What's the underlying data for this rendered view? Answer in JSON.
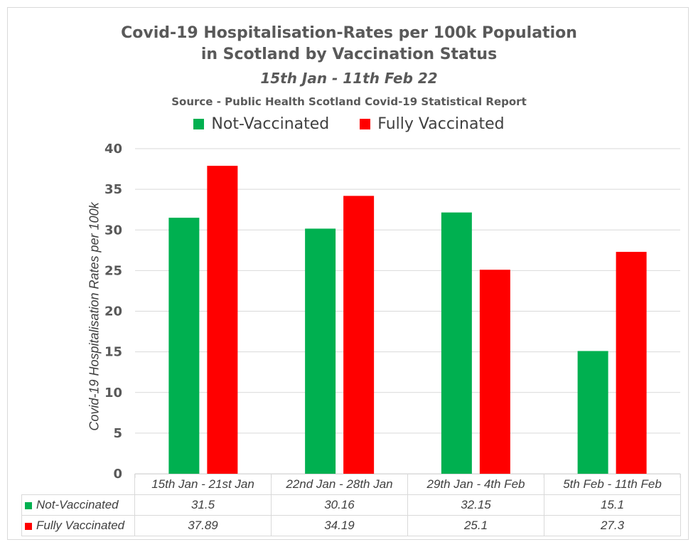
{
  "chart_data": {
    "type": "bar",
    "title": "Covid-19 Hospitalisation-Rates per 100k Population",
    "title_line2": "in Scotland by Vaccination Status",
    "subtitle": "15th Jan - 11th Feb 22",
    "source": "Source - Public Health Scotland Covid-19 Statistical Report",
    "ylabel": "Covid-19 Hospitalisation Rates per 100k",
    "xlabel": "",
    "ylim": [
      0,
      40
    ],
    "yticks": [
      "0",
      "5",
      "10",
      "15",
      "20",
      "25",
      "30",
      "35",
      "40"
    ],
    "grid": true,
    "legend_position": "top",
    "categories": [
      "15th Jan - 21st Jan",
      "22nd Jan - 28th Jan",
      "29th Jan - 4th Feb",
      "5th Feb - 11th Feb"
    ],
    "series": [
      {
        "name": "Not-Vaccinated",
        "color": "#00b050",
        "values": [
          31.5,
          30.16,
          32.15,
          15.1
        ],
        "labels": [
          "31.5",
          "30.16",
          "32.15",
          "15.1"
        ]
      },
      {
        "name": "Fully Vaccinated",
        "color": "#ff0000",
        "values": [
          37.89,
          34.19,
          25.1,
          27.3
        ],
        "labels": [
          "37.89",
          "34.19",
          "25.1",
          "27.3"
        ]
      }
    ]
  }
}
